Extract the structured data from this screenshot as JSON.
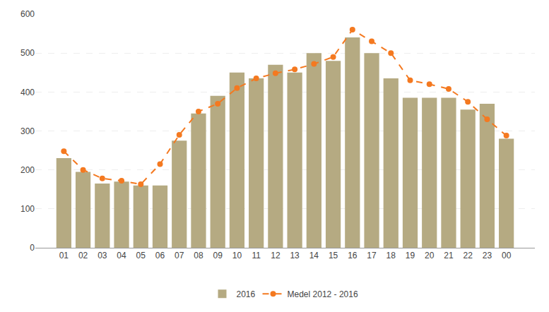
{
  "chart_data": {
    "type": "bar",
    "categories": [
      "01",
      "02",
      "03",
      "04",
      "05",
      "06",
      "07",
      "08",
      "09",
      "10",
      "11",
      "12",
      "13",
      "14",
      "15",
      "16",
      "17",
      "18",
      "19",
      "20",
      "21",
      "22",
      "23",
      "00"
    ],
    "series": [
      {
        "name": "2016",
        "type": "bar",
        "color": "#b5aa82",
        "values": [
          230,
          195,
          165,
          170,
          160,
          160,
          275,
          345,
          390,
          450,
          435,
          470,
          450,
          500,
          480,
          540,
          500,
          435,
          385,
          385,
          385,
          355,
          370,
          280
        ]
      },
      {
        "name": "Medel 2012 - 2016",
        "type": "line",
        "color": "#f47920",
        "line_style": "dashed",
        "marker": "circle",
        "values": [
          248,
          200,
          178,
          172,
          163,
          215,
          290,
          350,
          370,
          410,
          435,
          448,
          458,
          472,
          490,
          560,
          530,
          500,
          430,
          420,
          408,
          375,
          330,
          288
        ]
      }
    ],
    "ylim": [
      0,
      600
    ],
    "yticks": [
      0,
      100,
      200,
      300,
      400,
      500,
      600
    ],
    "grid": true,
    "legend": "bottom"
  }
}
